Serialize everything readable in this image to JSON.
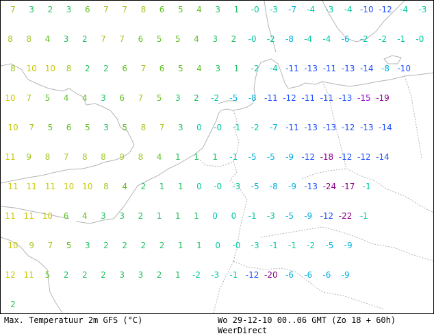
{
  "footer": {
    "title": "Max. Temperatuur 2m GFS (°C)",
    "valid": "Wo 29-12-10 00..06 GMT (Zo 18 + 60h)",
    "source": "WeerDirect"
  },
  "grid": {
    "rows": [
      [
        "7",
        "3",
        "2",
        "3",
        "6",
        "7",
        "7",
        "8",
        "6",
        "5",
        "4",
        "3",
        "1",
        "-0",
        "-3",
        "-7",
        "-4",
        "-3",
        "-4",
        "-10",
        "-12",
        "-4",
        "-3"
      ],
      [
        "8",
        "8",
        "4",
        "3",
        "2",
        "7",
        "7",
        "6",
        "5",
        "5",
        "4",
        "3",
        "2",
        "-0",
        "-2",
        "-8",
        "-4",
        "-4",
        "-6",
        "-2",
        "-2",
        "-1",
        "-0"
      ],
      [
        "8",
        "10",
        "10",
        "8",
        "2",
        "2",
        "6",
        "7",
        "6",
        "5",
        "4",
        "3",
        "1",
        "-2",
        "-4",
        "-11",
        "-13",
        "-11",
        "-13",
        "-14",
        "-8",
        "-10"
      ],
      [
        "10",
        "7",
        "5",
        "4",
        "4",
        "3",
        "6",
        "7",
        "5",
        "3",
        "2",
        "-2",
        "-5",
        "-8",
        "-11",
        "-12",
        "-11",
        "-11",
        "-13",
        "-15",
        "-19"
      ],
      [
        "10",
        "7",
        "5",
        "6",
        "5",
        "3",
        "5",
        "8",
        "7",
        "3",
        "0",
        "-0",
        "-1",
        "-2",
        "-7",
        "-11",
        "-13",
        "-13",
        "-12",
        "-13",
        "-14"
      ],
      [
        "11",
        "9",
        "8",
        "7",
        "8",
        "8",
        "9",
        "8",
        "4",
        "1",
        "1",
        "1",
        "-1",
        "-5",
        "-5",
        "-9",
        "-12",
        "-18",
        "-12",
        "-12",
        "-14"
      ],
      [
        "11",
        "11",
        "11",
        "10",
        "10",
        "8",
        "4",
        "2",
        "1",
        "1",
        "0",
        "-0",
        "-3",
        "-5",
        "-8",
        "-9",
        "-13",
        "-24",
        "-17",
        "-1"
      ],
      [
        "11",
        "11",
        "10",
        "6",
        "4",
        "3",
        "3",
        "2",
        "1",
        "1",
        "1",
        "0",
        "0",
        "-1",
        "-3",
        "-5",
        "-9",
        "-12",
        "-22",
        "-1"
      ],
      [
        "10",
        "9",
        "7",
        "5",
        "3",
        "2",
        "2",
        "2",
        "2",
        "1",
        "1",
        "0",
        "-0",
        "-3",
        "-1",
        "-1",
        "-2",
        "-5",
        "-9"
      ],
      [
        "12",
        "11",
        "5",
        "2",
        "2",
        "2",
        "3",
        "3",
        "2",
        "1",
        "-2",
        "-3",
        "-1",
        "-12",
        "-20",
        "-6",
        "-6",
        "-6",
        "-9"
      ],
      [
        "2"
      ]
    ]
  },
  "colors": {
    "border": "#000000",
    "coastline": "#b4b4b4",
    "scale": [
      "#8b008b",
      "#9400d3",
      "#1e50ff",
      "#00b0e0",
      "#00c8a0",
      "#20c060",
      "#60c020",
      "#a0c820",
      "#c8c800"
    ]
  }
}
